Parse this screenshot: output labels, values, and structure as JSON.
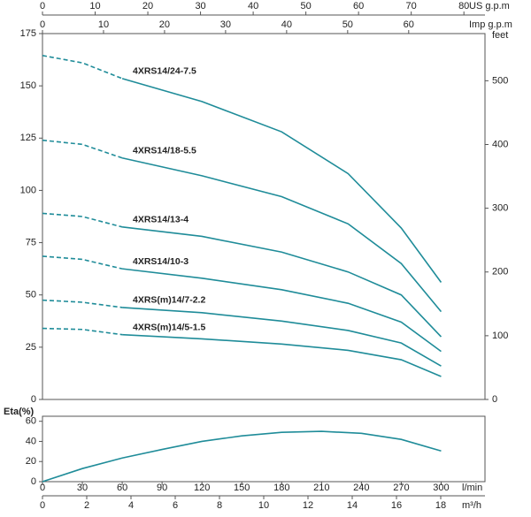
{
  "chart_data": [
    {
      "type": "line",
      "color": "#1f8c99",
      "dash_until_x": 60,
      "xlim": [
        0,
        333
      ],
      "ylim": [
        0,
        175
      ],
      "yticks": [
        0,
        25,
        50,
        75,
        100,
        125,
        150,
        175
      ],
      "y2label": "feet",
      "y2lim": [
        0,
        574
      ],
      "y2ticks": [
        0,
        100,
        200,
        300,
        400,
        500
      ],
      "top_axes": [
        {
          "label": "US g.p.m",
          "xlim": [
            0,
            84
          ],
          "xticks": [
            0,
            10,
            20,
            30,
            40,
            50,
            60,
            70,
            80
          ]
        },
        {
          "label": "Imp g.p.m",
          "xlim": [
            0,
            72.5
          ],
          "xticks": [
            0,
            10,
            20,
            30,
            40,
            50,
            60
          ]
        }
      ],
      "x": [
        0,
        30,
        60,
        120,
        180,
        230,
        270,
        300
      ],
      "series": [
        {
          "name": "4XRS14/24-7.5",
          "values": [
            164.5,
            161,
            153.5,
            142.5,
            128,
            108,
            82,
            56
          ]
        },
        {
          "name": "4XRS14/18-5.5",
          "values": [
            124,
            122,
            115.5,
            107,
            97,
            84,
            65,
            42
          ]
        },
        {
          "name": "4XRS14/13-4",
          "values": [
            89,
            87.5,
            82.5,
            78,
            70.5,
            61,
            50,
            30
          ]
        },
        {
          "name": "4XRS14/10-3",
          "values": [
            68.5,
            67,
            62.5,
            58,
            52.5,
            46,
            37,
            23
          ]
        },
        {
          "name": "4XRS(m)14/7-2.2",
          "values": [
            47.5,
            46.5,
            44,
            41.5,
            37.5,
            33,
            27,
            16
          ]
        },
        {
          "name": "4XRS(m)14/5-1.5",
          "values": [
            34,
            33.5,
            31,
            29,
            26.5,
            23.5,
            19,
            11
          ]
        }
      ]
    },
    {
      "type": "line",
      "color": "#1f8c99",
      "ylabel": "Eta(%)",
      "xlim": [
        0,
        333
      ],
      "ylim": [
        0,
        65
      ],
      "yticks": [
        0,
        20,
        40,
        60
      ],
      "bottom_axes": [
        {
          "label": "l/min",
          "xlim": [
            0,
            333
          ],
          "xticks": [
            0,
            30,
            60,
            90,
            120,
            150,
            180,
            210,
            240,
            270,
            300
          ]
        },
        {
          "label": "m³/h",
          "xlim": [
            0,
            20
          ],
          "xticks": [
            0,
            2,
            4,
            6,
            8,
            10,
            12,
            14,
            16,
            18
          ]
        }
      ],
      "x": [
        0,
        30,
        60,
        90,
        120,
        150,
        180,
        210,
        240,
        270,
        300
      ],
      "values": [
        0,
        13,
        23.5,
        32,
        40,
        45.5,
        49,
        50,
        48,
        42,
        30.5
      ]
    }
  ]
}
